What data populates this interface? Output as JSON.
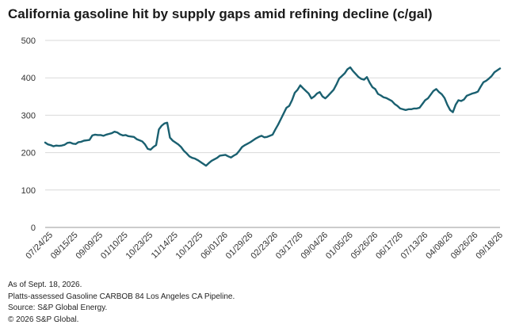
{
  "chart_data": {
    "type": "line",
    "title": "California gasoline hit by supply gaps amid refining decline (c/gal)",
    "ylim": [
      0,
      500
    ],
    "yticks": [
      0,
      100,
      200,
      300,
      400,
      500
    ],
    "grid": true,
    "x_labels": [
      "07/24/25",
      "08/15/25",
      "09/09/25",
      "01/10/25",
      "10/23/25",
      "11/14/25",
      "10/12/25",
      "06/01/26",
      "01/29/26",
      "02/23/26",
      "03/17/26",
      "09/04/26",
      "01/05/26",
      "05/26/26",
      "06/17/26",
      "07/13/26",
      "04/08/26",
      "08/26/26",
      "09/18/26"
    ],
    "colors": {
      "line": "#1a6070",
      "grid": "#d9d9d9"
    },
    "series": [
      {
        "values": [
          227,
          222,
          220,
          217,
          219,
          218,
          219,
          221,
          226,
          227,
          224,
          223,
          228,
          229,
          232,
          233,
          234,
          246,
          248,
          247,
          247,
          245,
          248,
          250,
          252,
          256,
          254,
          249,
          246,
          247,
          244,
          243,
          242,
          236,
          233,
          230,
          222,
          210,
          208,
          215,
          220,
          262,
          272,
          278,
          280,
          240,
          232,
          227,
          222,
          215,
          205,
          198,
          190,
          186,
          184,
          180,
          175,
          170,
          165,
          172,
          178,
          182,
          186,
          192,
          193,
          194,
          190,
          187,
          192,
          196,
          205,
          215,
          220,
          224,
          228,
          233,
          238,
          242,
          245,
          241,
          242,
          245,
          248,
          262,
          275,
          290,
          305,
          320,
          325,
          340,
          360,
          368,
          380,
          372,
          365,
          358,
          345,
          350,
          358,
          362,
          350,
          345,
          352,
          360,
          368,
          382,
          398,
          405,
          412,
          423,
          428,
          418,
          410,
          402,
          397,
          395,
          402,
          387,
          375,
          370,
          357,
          353,
          348,
          346,
          342,
          338,
          330,
          325,
          318,
          316,
          314,
          316,
          316,
          318,
          318,
          320,
          330,
          340,
          345,
          355,
          365,
          370,
          362,
          356,
          346,
          328,
          314,
          308,
          328,
          340,
          338,
          342,
          352,
          355,
          358,
          360,
          363,
          376,
          388,
          392,
          398,
          405,
          415,
          420,
          425
        ]
      }
    ]
  },
  "notes": [
    "As of Sept. 18, 2026.",
    "Platts-assessed Gasoline CARBOB 84 Los Angeles CA Pipeline.",
    "Source: S&P Global Energy.",
    "© 2026 S&P Global."
  ]
}
